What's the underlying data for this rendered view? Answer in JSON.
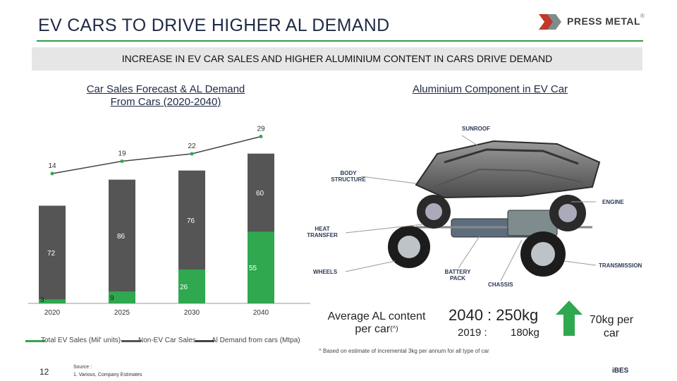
{
  "header": {
    "title": "EV CARS TO DRIVE HIGHER AL DEMAND",
    "logo_text": "PRESS METAL",
    "logo_reg": "®"
  },
  "banner": {
    "text": "INCREASE IN EV CAR SALES AND HIGHER ALUMINIUM CONTENT IN CARS DRIVE DEMAND"
  },
  "left_section": {
    "title_line1": "Car Sales Forecast & AL Demand",
    "title_line2": "From Cars (2020-2040)"
  },
  "right_section": {
    "title": "Aluminium Component in EV Car"
  },
  "chart_data": {
    "type": "bar",
    "categories": [
      "2020",
      "2025",
      "2030",
      "2040"
    ],
    "series": [
      {
        "name": "Total EV Sales (Mil' units)",
        "values": [
          3,
          9,
          26,
          55
        ],
        "color": "#2fa84f"
      },
      {
        "name": "Non-EV Car Sales",
        "values": [
          72,
          86,
          76,
          60
        ],
        "color": "#555555"
      },
      {
        "name": "Al Demand from cars (Mtpa)",
        "values": [
          14,
          19,
          22,
          29
        ],
        "color": "#444444"
      }
    ],
    "ylim": [
      0,
      130
    ],
    "line_ylim": [
      10,
      30
    ],
    "legend_position": "bottom"
  },
  "car_labels": {
    "sunroof": "SUNROOF",
    "body_structure_1": "BODY",
    "body_structure_2": "STRUCTURE",
    "engine": "ENGINE",
    "heat_transfer_1": "HEAT",
    "heat_transfer_2": "TRANSFER",
    "wheels": "WHEELS",
    "battery_pack_1": "BATTERY",
    "battery_pack_2": "PACK",
    "chassis": "CHASSIS",
    "transmission": "TRANSMISSION"
  },
  "stats": {
    "avg_label_line1": "Average AL content",
    "avg_label_line2": "per car",
    "avg_sup": "(^)",
    "year_2040": "2040 :",
    "value_2040": "250kg",
    "year_2019": "2019 :",
    "value_2019": "180kg",
    "per_car_line1": "70kg per",
    "per_car_line2": "car",
    "arrow_color": "#2fa84f"
  },
  "footnote": "^ Based on estimate of incremental 3kg per annum for all type of car",
  "footer": {
    "page_number": "12",
    "source_line1": "Source :",
    "source_line2": "1.      Various, Company Estimates",
    "ibes": "iBES"
  }
}
